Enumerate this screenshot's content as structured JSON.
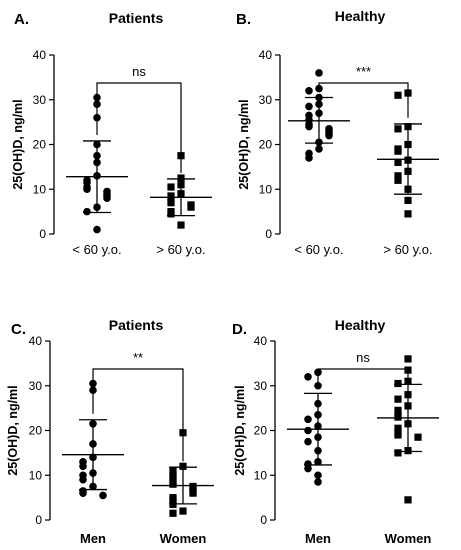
{
  "chart_data": [
    {
      "type": "scatter",
      "panel": "A.",
      "title": "Patients",
      "ylabel": "25(OH)D, ng/ml",
      "ylim": [
        0,
        40
      ],
      "yticks": [
        0,
        10,
        20,
        30,
        40
      ],
      "categories": [
        "< 60 y.o.",
        "> 60 y.o."
      ],
      "x_bold": false,
      "significance": "ns",
      "series": [
        {
          "marker": "circle",
          "values": [
            30.5,
            29,
            26,
            20,
            17.5,
            16,
            13,
            12,
            11.5,
            10.5,
            10,
            9.5,
            9,
            8.5,
            8,
            6,
            5,
            1
          ],
          "mean": 12.8,
          "sd_low": 4.8,
          "sd_high": 20.8
        },
        {
          "marker": "square",
          "values": [
            17.5,
            12.5,
            11,
            10.5,
            9,
            8.5,
            7.5,
            7,
            6.5,
            6,
            5,
            4.5,
            2
          ],
          "mean": 8.2,
          "sd_low": 4.1,
          "sd_high": 12.3
        }
      ]
    },
    {
      "type": "scatter",
      "panel": "B.",
      "title": "Healthy",
      "ylabel": "25(OH)D, ng/ml",
      "ylim": [
        0,
        40
      ],
      "yticks": [
        0,
        10,
        20,
        30,
        40
      ],
      "categories": [
        "< 60 y.o.",
        "> 60 y.o."
      ],
      "x_bold": false,
      "significance": "***",
      "series": [
        {
          "marker": "circle",
          "values": [
            36,
            32.5,
            32,
            30.5,
            29,
            28.5,
            27,
            26.5,
            25.5,
            24.5,
            24,
            23.5,
            23,
            22.5,
            22,
            20.5,
            19,
            18,
            17
          ],
          "mean": 25.3,
          "sd_low": 20.3,
          "sd_high": 30.5
        },
        {
          "marker": "square",
          "values": [
            31.5,
            31,
            24,
            23.5,
            20,
            19,
            18.5,
            16.5,
            16,
            14,
            13,
            12,
            10,
            7.5,
            4.5
          ],
          "mean": 16.7,
          "sd_low": 8.9,
          "sd_high": 24.6
        }
      ]
    },
    {
      "type": "scatter",
      "panel": "C.",
      "title": "Patients",
      "ylabel": "25(OH)D, ng/ml",
      "ylim": [
        0,
        40
      ],
      "yticks": [
        0,
        10,
        20,
        30,
        40
      ],
      "categories": [
        "Men",
        "Women"
      ],
      "x_bold": true,
      "significance": "**",
      "series": [
        {
          "marker": "circle",
          "values": [
            30.5,
            29,
            21.5,
            17,
            14,
            13,
            12,
            10.5,
            10,
            9,
            7.5,
            6.5,
            6,
            5.5
          ],
          "mean": 14.6,
          "sd_low": 6.8,
          "sd_high": 22.4
        },
        {
          "marker": "square",
          "values": [
            19.5,
            12,
            11,
            10,
            9.5,
            8.5,
            8,
            7.5,
            7,
            6.5,
            6,
            5,
            4.5,
            3.5,
            2,
            1.5
          ],
          "mean": 7.7,
          "sd_low": 3.6,
          "sd_high": 11.8
        }
      ]
    },
    {
      "type": "scatter",
      "panel": "D.",
      "title": "Healthy",
      "ylabel": "25(OH)D, ng/ml",
      "ylim": [
        0,
        40
      ],
      "yticks": [
        0,
        10,
        20,
        30,
        40
      ],
      "categories": [
        "Men",
        "Women"
      ],
      "x_bold": true,
      "significance": "ns",
      "series": [
        {
          "marker": "circle",
          "values": [
            33,
            32,
            30,
            26,
            23.5,
            22.5,
            21,
            20,
            18.5,
            17.5,
            15.5,
            13,
            12.5,
            11.5,
            10,
            8.5
          ],
          "mean": 20.3,
          "sd_low": 12.3,
          "sd_high": 28.3
        },
        {
          "marker": "square",
          "values": [
            36,
            33.5,
            31,
            30.5,
            28,
            27,
            25.5,
            24.5,
            23.5,
            23,
            21.5,
            20.5,
            19.5,
            19,
            18.5,
            15.5,
            15,
            4.5
          ],
          "mean": 22.8,
          "sd_low": 15.3,
          "sd_high": 30.3
        }
      ]
    }
  ]
}
